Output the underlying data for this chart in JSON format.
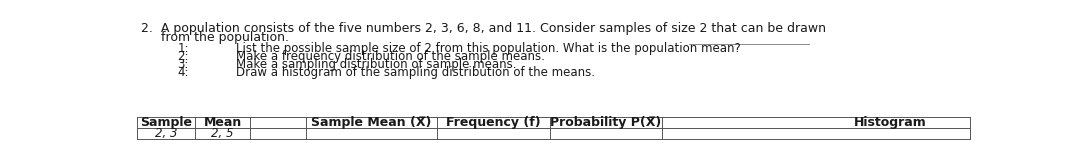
{
  "bg_color": "#ffffff",
  "text_color": "#1a1a1a",
  "title_line1": "2.  A population consists of the five numbers 2, 3, 6, 8, and 11. Consider samples of size 2 that can be drawn",
  "title_line2": "     from the population.",
  "item1_num": "1:",
  "item1_text": "List the possible sample size of 2 from this population. What is the population mean?",
  "item2_num": "2:",
  "item2_text": "Make a frequency distribution of the sample means.",
  "item3_num": "3:",
  "item3_text": "Make a sampling distribution of sample means.",
  "item4_num": "4:",
  "item4_text": "Draw a histogram of the sampling distribution of the means.",
  "col1_header": "Sample",
  "col2_header": "Mean",
  "col3_header": "Sample Mean (X̅)",
  "col4_header": "Frequency (f)",
  "col5_header": "Probability P(X̅)",
  "col6_header": "Histogram",
  "row1_col1": "2, 3",
  "row1_col2": "2, 5",
  "fontsize_title": 9.0,
  "fontsize_body": 8.5,
  "fontsize_table_header": 9.0,
  "fontsize_table_row": 8.5,
  "underline_color": "#888888",
  "table_line_color": "#555555",
  "table_line_lw": 0.7
}
